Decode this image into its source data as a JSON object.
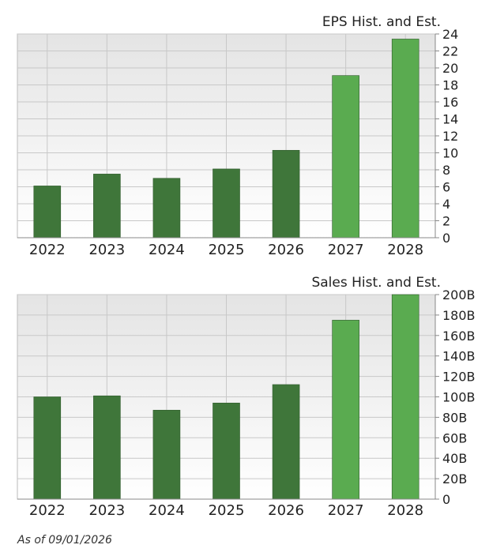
{
  "chart_data": [
    {
      "type": "bar",
      "title": "EPS Hist. and Est.",
      "categories": [
        "2022",
        "2023",
        "2024",
        "2025",
        "2026",
        "2027",
        "2028"
      ],
      "values": [
        6.1,
        7.5,
        7.0,
        8.1,
        10.3,
        19.1,
        23.4
      ],
      "estimate": [
        false,
        false,
        false,
        false,
        false,
        true,
        true
      ],
      "ylim": [
        0,
        24
      ],
      "yticks": [
        0,
        2,
        4,
        6,
        8,
        10,
        12,
        14,
        16,
        18,
        20,
        22,
        24
      ],
      "ytick_labels": [
        "0",
        "2",
        "4",
        "6",
        "8",
        "10",
        "12",
        "14",
        "16",
        "18",
        "20",
        "22",
        "24"
      ],
      "y_axis_side": "right",
      "grid": true
    },
    {
      "type": "bar",
      "title": "Sales Hist. and Est.",
      "categories": [
        "2022",
        "2023",
        "2024",
        "2025",
        "2026",
        "2027",
        "2028"
      ],
      "values": [
        100,
        101,
        87,
        94,
        112,
        175,
        200
      ],
      "estimate": [
        false,
        false,
        false,
        false,
        false,
        true,
        true
      ],
      "ylim": [
        0,
        200
      ],
      "yticks": [
        0,
        20,
        40,
        60,
        80,
        100,
        120,
        140,
        160,
        180,
        200
      ],
      "ytick_labels": [
        "0",
        "20B",
        "40B",
        "60B",
        "80B",
        "100B",
        "120B",
        "140B",
        "160B",
        "180B",
        "200B"
      ],
      "y_axis_side": "right",
      "grid": true
    }
  ],
  "colors": {
    "historical": "#3f763a",
    "estimate": "#5aab50",
    "plot_bg_top": "#e4e4e4",
    "plot_bg_bottom": "#ffffff",
    "grid": "#c8c8c8"
  },
  "footer": {
    "as_of": "As of 09/01/2026"
  }
}
